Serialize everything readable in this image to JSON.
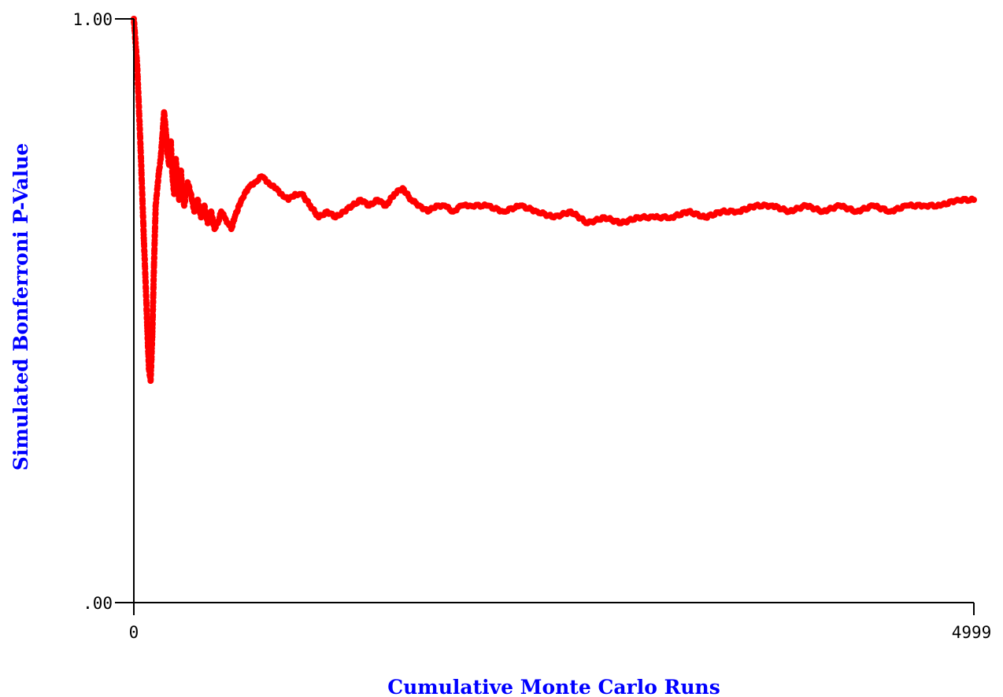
{
  "chart_data": {
    "type": "scatter",
    "title": "",
    "xlabel": "Cumulative Monte Carlo Runs",
    "ylabel": "Simulated Bonferroni P-Value",
    "xlim": [
      0,
      4999
    ],
    "ylim": [
      0,
      1
    ],
    "x_tick_labels": [
      "0",
      "4999"
    ],
    "y_tick_labels": [
      ".00",
      "1.00"
    ],
    "grid": false,
    "legend": "none",
    "marker_color": "#ff0000",
    "axis_color": "#000000",
    "label_color": "#0000ff",
    "series": [
      {
        "x": [
          0,
          10,
          20,
          30,
          40,
          50,
          60,
          70,
          80,
          90,
          100,
          110,
          120,
          130,
          140,
          150,
          160,
          170,
          180,
          190,
          200,
          210,
          220,
          230,
          240,
          250,
          260,
          270,
          280,
          290,
          300,
          320,
          340,
          360,
          380,
          400,
          420,
          440,
          460,
          480,
          500,
          520,
          540,
          560,
          580,
          600,
          640,
          680,
          720,
          760,
          800,
          840,
          880,
          920,
          960,
          1000,
          1050,
          1100,
          1150,
          1200,
          1250,
          1300,
          1350,
          1400,
          1450,
          1500,
          1550,
          1600,
          1650,
          1700,
          1750,
          1800,
          1850,
          1900,
          1950,
          2000,
          2100,
          2200,
          2300,
          2400,
          2500,
          2600,
          2700,
          2800,
          2900,
          3000,
          3100,
          3200,
          3300,
          3400,
          3500,
          3600,
          3700,
          3800,
          3900,
          4000,
          4100,
          4200,
          4300,
          4400,
          4500,
          4600,
          4700,
          4800,
          4900,
          4999
        ],
        "y": [
          1.0,
          0.96,
          0.92,
          0.85,
          0.78,
          0.7,
          0.62,
          0.55,
          0.47,
          0.4,
          0.38,
          0.46,
          0.58,
          0.68,
          0.71,
          0.74,
          0.76,
          0.8,
          0.84,
          0.81,
          0.77,
          0.75,
          0.79,
          0.73,
          0.7,
          0.76,
          0.72,
          0.69,
          0.74,
          0.7,
          0.68,
          0.72,
          0.7,
          0.67,
          0.69,
          0.66,
          0.68,
          0.65,
          0.67,
          0.64,
          0.65,
          0.67,
          0.66,
          0.65,
          0.64,
          0.66,
          0.69,
          0.71,
          0.72,
          0.73,
          0.72,
          0.71,
          0.7,
          0.69,
          0.7,
          0.7,
          0.68,
          0.66,
          0.67,
          0.66,
          0.67,
          0.68,
          0.69,
          0.68,
          0.69,
          0.68,
          0.7,
          0.71,
          0.69,
          0.68,
          0.67,
          0.68,
          0.68,
          0.67,
          0.68,
          0.68,
          0.68,
          0.67,
          0.68,
          0.67,
          0.66,
          0.67,
          0.65,
          0.66,
          0.65,
          0.66,
          0.66,
          0.66,
          0.67,
          0.66,
          0.67,
          0.67,
          0.68,
          0.68,
          0.67,
          0.68,
          0.67,
          0.68,
          0.67,
          0.68,
          0.67,
          0.68,
          0.68,
          0.68,
          0.69,
          0.69
        ]
      }
    ]
  }
}
